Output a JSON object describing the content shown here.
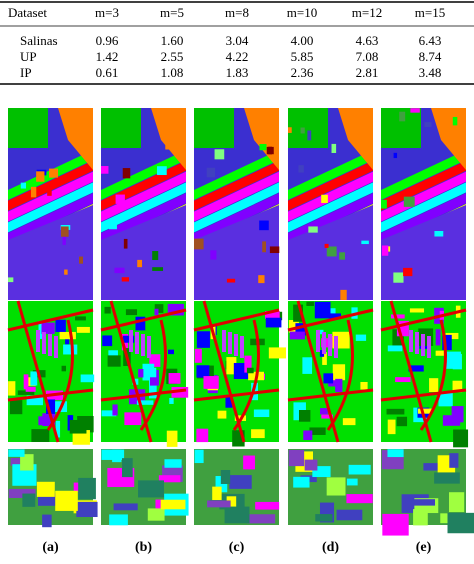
{
  "table": {
    "header": [
      "Dataset",
      "m=3",
      "m=5",
      "m=8",
      "m=10",
      "m=12",
      "m=15"
    ],
    "rows": [
      [
        "Salinas",
        "0.96",
        "1.60",
        "3.04",
        "4.00",
        "4.63",
        "6.43"
      ],
      [
        "UP",
        "1.42",
        "2.55",
        "4.22",
        "5.85",
        "7.08",
        "8.74"
      ],
      [
        "IP",
        "0.61",
        "1.08",
        "1.83",
        "2.36",
        "2.81",
        "3.48"
      ]
    ]
  },
  "figure": {
    "captions": [
      "(a)",
      "(b)",
      "(c)",
      "(d)",
      "(e)"
    ]
  }
}
